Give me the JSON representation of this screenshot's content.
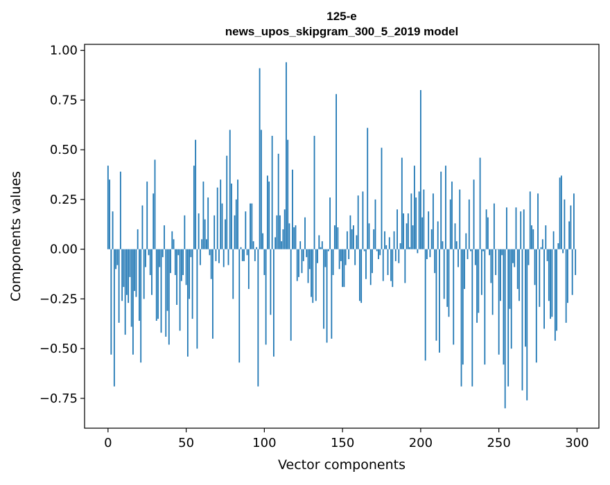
{
  "chart_data": {
    "type": "bar",
    "title": "125-e",
    "subtitle": "news_upos_skipgram_300_5_2019 model",
    "xlabel": "Vector components",
    "ylabel": "Components values",
    "x_ticks": [
      0,
      50,
      100,
      150,
      200,
      250,
      300
    ],
    "y_ticks": [
      -0.75,
      -0.5,
      -0.25,
      0.0,
      0.25,
      0.5,
      0.75,
      1.0
    ],
    "xlim": [
      -15,
      314
    ],
    "ylim": [
      -0.9,
      1.03
    ],
    "grid": false,
    "bar_color": "#1f77b4",
    "n_components": 300,
    "values": [
      0.42,
      0.35,
      -0.53,
      0.19,
      -0.69,
      -0.1,
      -0.08,
      -0.37,
      0.39,
      -0.26,
      -0.19,
      -0.43,
      -0.23,
      -0.27,
      -0.14,
      -0.39,
      -0.53,
      -0.21,
      -0.24,
      0.1,
      -0.36,
      -0.57,
      0.22,
      -0.25,
      -0.09,
      0.34,
      -0.03,
      -0.13,
      -0.23,
      0.28,
      0.45,
      -0.36,
      -0.35,
      -0.09,
      -0.42,
      -0.04,
      0.12,
      -0.44,
      -0.31,
      -0.48,
      -0.12,
      0.09,
      0.05,
      -0.13,
      -0.28,
      -0.03,
      -0.41,
      -0.16,
      -0.13,
      0.17,
      -0.18,
      -0.54,
      -0.25,
      -0.04,
      -0.35,
      0.42,
      0.55,
      -0.5,
      0.18,
      -0.08,
      0.05,
      0.34,
      0.15,
      0.05,
      0.26,
      -0.03,
      -0.15,
      -0.45,
      0.17,
      -0.06,
      0.31,
      -0.07,
      0.35,
      0.23,
      -0.09,
      0.15,
      0.47,
      -0.08,
      0.6,
      0.33,
      -0.25,
      0.17,
      0.25,
      0.35,
      -0.57,
      0.01,
      -0.06,
      -0.06,
      0.19,
      -0.03,
      -0.2,
      0.23,
      0.23,
      0.04,
      -0.06,
      0.01,
      -0.69,
      0.91,
      0.6,
      0.08,
      -0.13,
      -0.48,
      0.37,
      0.34,
      -0.33,
      0.57,
      -0.54,
      0.06,
      0.17,
      0.48,
      0.17,
      0.04,
      0.1,
      0.2,
      0.94,
      0.55,
      0.13,
      -0.46,
      0.4,
      0.11,
      0.12,
      -0.16,
      -0.14,
      0.04,
      -0.12,
      -0.06,
      0.16,
      -0.04,
      -0.17,
      -0.1,
      -0.24,
      -0.27,
      0.57,
      -0.26,
      -0.07,
      0.07,
      0.01,
      0.04,
      -0.4,
      -0.09,
      -0.47,
      -0.01,
      0.26,
      -0.45,
      -0.13,
      0.12,
      0.78,
      0.11,
      -0.1,
      -0.06,
      -0.19,
      -0.19,
      -0.08,
      0.09,
      -0.05,
      0.17,
      0.1,
      0.12,
      -0.08,
      0.07,
      0.27,
      -0.26,
      -0.27,
      0.29,
      -0.01,
      -0.15,
      0.61,
      0.13,
      -0.18,
      -0.12,
      0.1,
      0.25,
      -0.01,
      -0.05,
      -0.03,
      0.51,
      -0.16,
      0.09,
      0.02,
      -0.13,
      0.06,
      -0.16,
      -0.19,
      0.09,
      -0.06,
      0.2,
      -0.07,
      0.03,
      0.46,
      0.18,
      -0.17,
      0.13,
      0.18,
      0.01,
      0.28,
      0.12,
      0.42,
      0.26,
      -0.02,
      0.29,
      0.8,
      0.16,
      0.3,
      -0.56,
      -0.05,
      0.19,
      -0.04,
      0.1,
      0.28,
      -0.12,
      -0.46,
      0.14,
      -0.52,
      0.39,
      0.04,
      -0.25,
      0.42,
      -0.29,
      -0.34,
      0.25,
      0.34,
      -0.48,
      0.13,
      0.04,
      -0.09,
      0.3,
      -0.69,
      -0.58,
      -0.2,
      0.08,
      -0.05,
      0.25,
      -0.01,
      -0.69,
      0.35,
      -0.08,
      -0.37,
      -0.32,
      0.46,
      -0.23,
      -0.01,
      -0.58,
      0.2,
      0.16,
      -0.03,
      -0.17,
      -0.33,
      0.23,
      -0.13,
      0.0,
      -0.53,
      -0.26,
      -0.03,
      -0.58,
      -0.8,
      0.21,
      -0.69,
      -0.3,
      -0.5,
      -0.07,
      -0.09,
      0.21,
      -0.2,
      -0.26,
      0.19,
      -0.71,
      0.2,
      -0.49,
      -0.76,
      -0.08,
      0.29,
      0.12,
      0.1,
      -0.18,
      -0.57,
      0.28,
      -0.29,
      0.01,
      0.05,
      -0.4,
      0.12,
      -0.06,
      -0.26,
      -0.35,
      -0.34,
      0.09,
      -0.46,
      -0.41,
      0.03,
      0.36,
      0.37,
      -0.02,
      0.25,
      -0.37,
      -0.27,
      0.14,
      0.22,
      -0.23,
      0.28,
      -0.13
    ]
  }
}
